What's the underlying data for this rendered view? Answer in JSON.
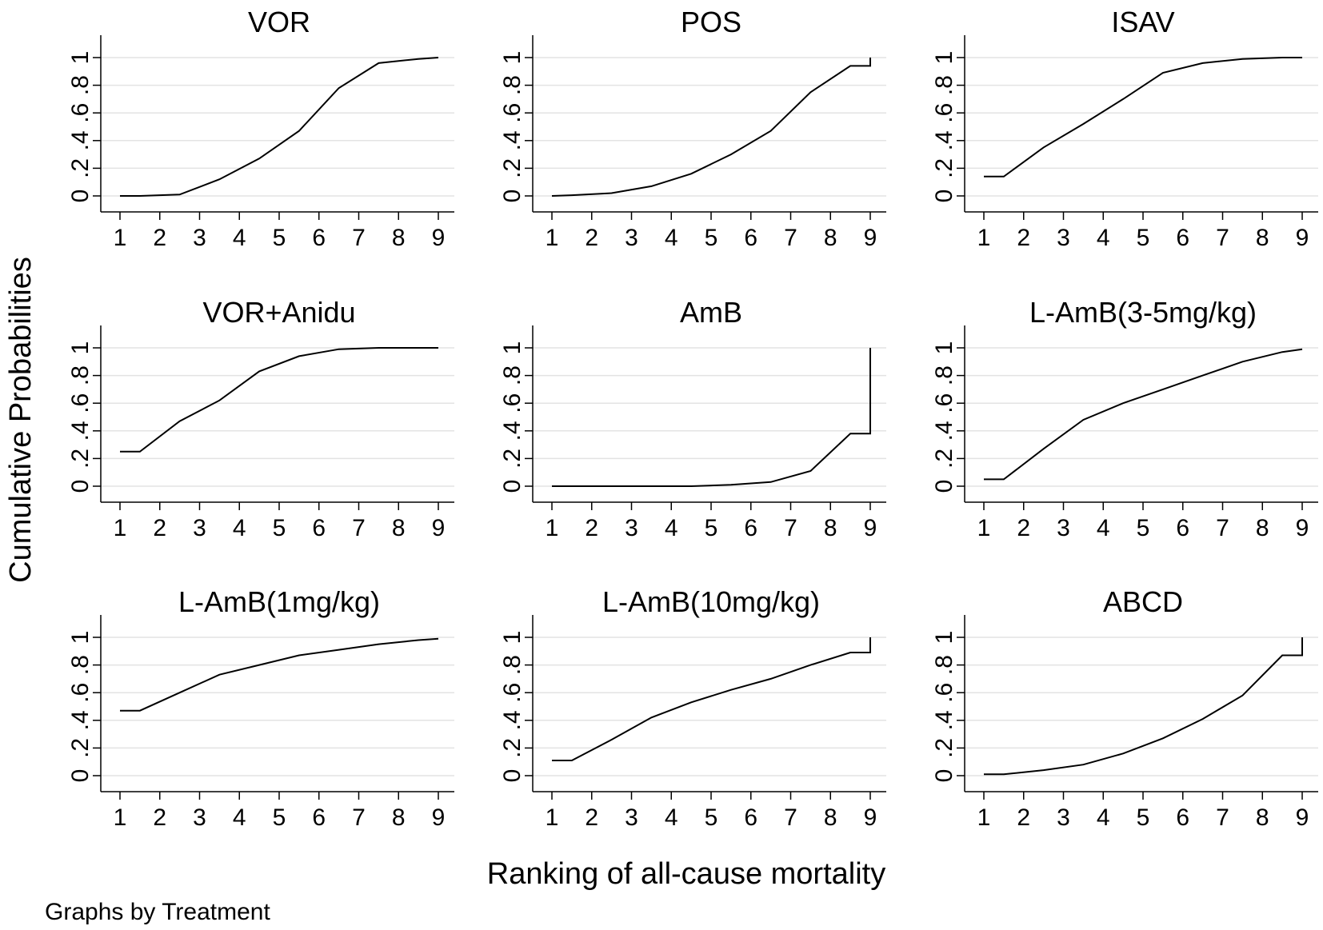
{
  "chart_data": {
    "type": "line",
    "ylabel": "Cumulative Probabilities",
    "xlabel": "Ranking of all-cause mortality",
    "note": "Graphs by Treatment",
    "xlim": [
      1,
      9
    ],
    "ylim": [
      0,
      1
    ],
    "x_ticks": [
      1,
      2,
      3,
      4,
      5,
      6,
      7,
      8,
      9
    ],
    "y_ticks": [
      0,
      0.2,
      0.4,
      0.6,
      0.8,
      1
    ],
    "y_tick_labels": [
      "0",
      ".2",
      ".4",
      ".6",
      ".8",
      "1"
    ],
    "panels": [
      {
        "title": "VOR",
        "x": [
          1,
          1.5,
          2.5,
          3.5,
          4.5,
          5.5,
          6.5,
          7.5,
          8.5,
          9
        ],
        "y": [
          0,
          0,
          0.01,
          0.12,
          0.27,
          0.47,
          0.78,
          0.96,
          0.99,
          1
        ]
      },
      {
        "title": "POS",
        "x": [
          1,
          1.5,
          2.5,
          3.5,
          4.5,
          5.5,
          6.5,
          7.5,
          8.5,
          9,
          9
        ],
        "y": [
          0,
          0.005,
          0.02,
          0.07,
          0.16,
          0.3,
          0.47,
          0.75,
          0.94,
          0.94,
          1
        ]
      },
      {
        "title": "ISAV",
        "x": [
          1,
          1.5,
          2.5,
          3.5,
          4.5,
          5.5,
          6.5,
          7.5,
          8.5,
          9
        ],
        "y": [
          0.14,
          0.14,
          0.35,
          0.52,
          0.7,
          0.89,
          0.96,
          0.99,
          1,
          1
        ]
      },
      {
        "title": "VOR+Anidu",
        "x": [
          1,
          1.5,
          2.5,
          3.5,
          4.5,
          5.5,
          6.5,
          7.5,
          8.5,
          9
        ],
        "y": [
          0.25,
          0.25,
          0.47,
          0.62,
          0.83,
          0.94,
          0.99,
          1,
          1,
          1
        ]
      },
      {
        "title": "AmB",
        "x": [
          1,
          1.5,
          2.5,
          3.5,
          4.5,
          5.5,
          6.5,
          7.5,
          8.5,
          9,
          9
        ],
        "y": [
          0,
          0,
          0,
          0,
          0,
          0.01,
          0.03,
          0.11,
          0.38,
          0.38,
          1
        ]
      },
      {
        "title": "L-AmB(3-5mg/kg)",
        "x": [
          1,
          1.5,
          2.5,
          3.5,
          4.5,
          5.5,
          6.5,
          7.5,
          8.5,
          9
        ],
        "y": [
          0.05,
          0.05,
          0.27,
          0.48,
          0.6,
          0.7,
          0.8,
          0.9,
          0.97,
          0.99
        ]
      },
      {
        "title": "L-AmB(1mg/kg)",
        "x": [
          1,
          1.5,
          2.5,
          3.5,
          4.5,
          5.5,
          6.5,
          7.5,
          8.5,
          9
        ],
        "y": [
          0.47,
          0.47,
          0.6,
          0.73,
          0.8,
          0.87,
          0.91,
          0.95,
          0.98,
          0.99
        ]
      },
      {
        "title": "L-AmB(10mg/kg)",
        "x": [
          1,
          1.5,
          2.5,
          3.5,
          4.5,
          5.5,
          6.5,
          7.5,
          8.5,
          9,
          9
        ],
        "y": [
          0.11,
          0.11,
          0.26,
          0.42,
          0.53,
          0.62,
          0.7,
          0.8,
          0.89,
          0.89,
          1
        ]
      },
      {
        "title": "ABCD",
        "x": [
          1,
          1.5,
          2.5,
          3.5,
          4.5,
          5.5,
          6.5,
          7.5,
          8.5,
          9,
          9
        ],
        "y": [
          0.01,
          0.01,
          0.04,
          0.08,
          0.16,
          0.27,
          0.41,
          0.58,
          0.87,
          0.87,
          1
        ]
      }
    ]
  }
}
